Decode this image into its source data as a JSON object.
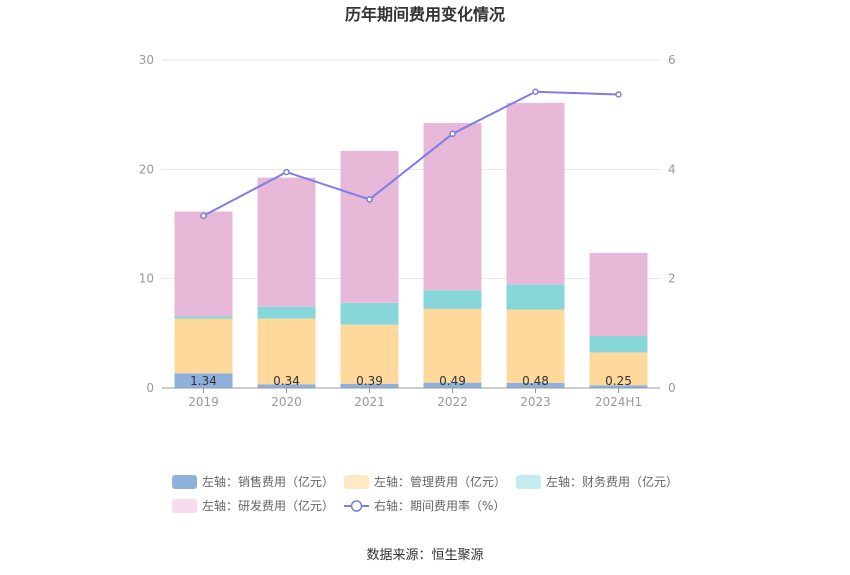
{
  "chart_data": {
    "type": "bar",
    "title": "历年期间费用变化情况",
    "categories": [
      "2019",
      "2020",
      "2021",
      "2022",
      "2023",
      "2024H1"
    ],
    "y_left": {
      "ylim": [
        0,
        30
      ],
      "ticks": [
        "0",
        "10",
        "20",
        "30"
      ]
    },
    "y_right": {
      "ylim": [
        0,
        6
      ],
      "ticks": [
        "0",
        "2",
        "4",
        "6"
      ]
    },
    "stacked": true,
    "series": [
      {
        "name": "左轴：销售费用（亿元）",
        "axis": "left",
        "color": "#8eb0dc",
        "values": [
          1.34,
          0.34,
          0.39,
          0.49,
          0.48,
          0.25
        ],
        "labels": [
          "1.34",
          "0.34",
          "0.39",
          "0.49",
          "0.48",
          "0.25"
        ]
      },
      {
        "name": "左轴：管理费用（亿元）",
        "axis": "left",
        "color": "#ffd99b",
        "values": [
          5.0,
          6.0,
          5.4,
          6.75,
          6.7,
          3.0
        ]
      },
      {
        "name": "左轴：财务费用（亿元）",
        "axis": "left",
        "color": "#87d6da",
        "values": [
          0.2,
          1.1,
          2.0,
          1.7,
          2.3,
          1.5
        ]
      },
      {
        "name": "左轴：研发费用（亿元）",
        "axis": "left",
        "color": "#e8b8d8",
        "values": [
          9.6,
          11.8,
          13.9,
          15.3,
          16.6,
          7.6
        ]
      },
      {
        "name": "右轴：期间费用率（%）",
        "axis": "right",
        "type": "line",
        "color": "#7b7de8",
        "values": [
          3.15,
          3.95,
          3.45,
          4.65,
          5.42,
          5.37
        ]
      }
    ],
    "legend_colors": [
      "#8eb0dc",
      "#ffe8c4",
      "#c3ecee",
      "#f6dcee",
      "#7b7de8"
    ],
    "legend_position": "bottom",
    "grid": true
  },
  "source": "数据来源：恒生聚源"
}
